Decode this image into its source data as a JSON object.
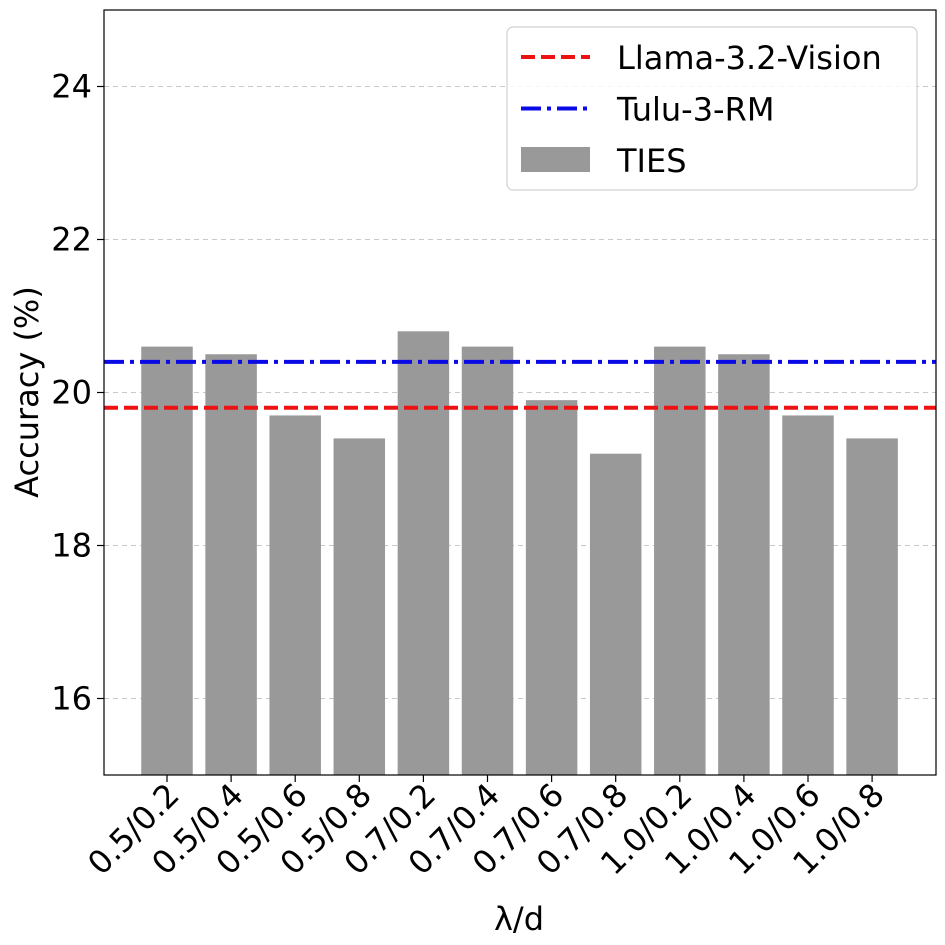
{
  "chart_data": {
    "type": "bar",
    "title": "",
    "xlabel": "λ/d",
    "ylabel": "Accuracy (%)",
    "ylim": [
      15,
      25
    ],
    "yticks": [
      16,
      18,
      20,
      22,
      24
    ],
    "grid": "y",
    "legend_position": "top-right",
    "categories": [
      "0.5/0.2",
      "0.5/0.4",
      "0.5/0.6",
      "0.5/0.8",
      "0.7/0.2",
      "0.7/0.4",
      "0.7/0.6",
      "0.7/0.8",
      "1.0/0.2",
      "1.0/0.4",
      "1.0/0.6",
      "1.0/0.8"
    ],
    "series": [
      {
        "name": "TIES",
        "type": "bar",
        "color": "#999999",
        "values": [
          20.6,
          20.5,
          19.7,
          19.4,
          20.8,
          20.6,
          19.9,
          19.2,
          20.6,
          20.5,
          19.7,
          19.4
        ]
      }
    ],
    "reference_lines": [
      {
        "name": "Llama-3.2-Vision",
        "value": 19.8,
        "color": "#ee1111",
        "style": "dashed"
      },
      {
        "name": "Tulu-3-RM",
        "value": 20.4,
        "color": "#0a0ae6",
        "style": "dashdot"
      }
    ]
  }
}
